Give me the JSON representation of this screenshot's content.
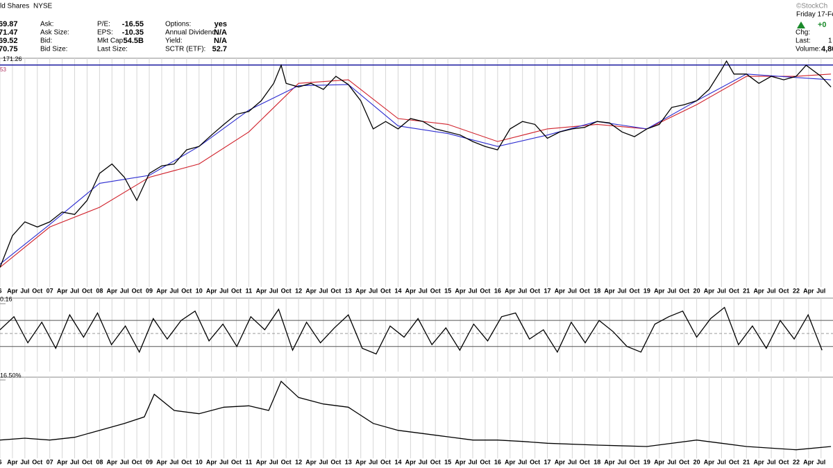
{
  "header": {
    "title": "ld Shares",
    "exchange": "NYSE",
    "brand": "©StockCh",
    "date": "Friday 17-Fe",
    "change": "+0",
    "last": "1",
    "volume": "4,80",
    "prices": [
      "69.87",
      "71.47",
      "69.52",
      "70.75"
    ],
    "labels1": [
      "Ask:",
      "Ask Size:",
      "Bid:",
      "Bid Size:"
    ],
    "labels2": [
      "P/E:",
      "EPS:",
      "Mkt Cap:",
      "Last Size:"
    ],
    "values2": [
      "-16.55",
      "-10.35",
      "54.5B"
    ],
    "labels3": [
      "Options:",
      "Annual Dividend:",
      "Yield:",
      "SCTR (ETF):"
    ],
    "values3": [
      "yes",
      "N/A",
      "N/A",
      "52.7"
    ],
    "side_labels": [
      "Chg:",
      "Last:",
      "Volume:"
    ]
  },
  "chart_data": [
    {
      "type": "line",
      "log": true,
      "grid": true,
      "xlim": [
        2006,
        2022.74
      ],
      "ylim": [
        52,
        175
      ],
      "hline": 171.26,
      "end_label": "53",
      "xticks": [
        {
          "value": 2006,
          "label": "6"
        },
        {
          "value": 2006.25,
          "label": "Apr"
        },
        {
          "value": 2006.5,
          "label": "Jul"
        },
        {
          "value": 2006.75,
          "label": "Oct"
        },
        {
          "value": 2007,
          "label": "07"
        },
        {
          "value": 2007.25,
          "label": "Apr"
        },
        {
          "value": 2007.5,
          "label": "Jul"
        },
        {
          "value": 2007.75,
          "label": "Oct"
        },
        {
          "value": 2008,
          "label": "08"
        },
        {
          "value": 2008.25,
          "label": "Apr"
        },
        {
          "value": 2008.5,
          "label": "Jul"
        },
        {
          "value": 2008.75,
          "label": "Oct"
        },
        {
          "value": 2009,
          "label": "09"
        },
        {
          "value": 2009.25,
          "label": "Apr"
        },
        {
          "value": 2009.5,
          "label": "Jul"
        },
        {
          "value": 2009.75,
          "label": "Oct"
        },
        {
          "value": 2010,
          "label": "10"
        },
        {
          "value": 2010.25,
          "label": "Apr"
        },
        {
          "value": 2010.5,
          "label": "Jul"
        },
        {
          "value": 2010.75,
          "label": "Oct"
        },
        {
          "value": 2011,
          "label": "11"
        },
        {
          "value": 2011.25,
          "label": "Apr"
        },
        {
          "value": 2011.5,
          "label": "Jul"
        },
        {
          "value": 2011.75,
          "label": "Oct"
        },
        {
          "value": 2012,
          "label": "12"
        },
        {
          "value": 2012.25,
          "label": "Apr"
        },
        {
          "value": 2012.5,
          "label": "Jul"
        },
        {
          "value": 2012.75,
          "label": "Oct"
        },
        {
          "value": 2013,
          "label": "13"
        },
        {
          "value": 2013.25,
          "label": "Apr"
        },
        {
          "value": 2013.5,
          "label": "Jul"
        },
        {
          "value": 2013.75,
          "label": "Oct"
        },
        {
          "value": 2014,
          "label": "14"
        },
        {
          "value": 2014.25,
          "label": "Apr"
        },
        {
          "value": 2014.5,
          "label": "Jul"
        },
        {
          "value": 2014.75,
          "label": "Oct"
        },
        {
          "value": 2015,
          "label": "15"
        },
        {
          "value": 2015.25,
          "label": "Apr"
        },
        {
          "value": 2015.5,
          "label": "Jul"
        },
        {
          "value": 2015.75,
          "label": "Oct"
        },
        {
          "value": 2016,
          "label": "16"
        },
        {
          "value": 2016.25,
          "label": "Apr"
        },
        {
          "value": 2016.5,
          "label": "Jul"
        },
        {
          "value": 2016.75,
          "label": "Oct"
        },
        {
          "value": 2017,
          "label": "17"
        },
        {
          "value": 2017.25,
          "label": "Apr"
        },
        {
          "value": 2017.5,
          "label": "Jul"
        },
        {
          "value": 2017.75,
          "label": "Oct"
        },
        {
          "value": 2018,
          "label": "18"
        },
        {
          "value": 2018.25,
          "label": "Apr"
        },
        {
          "value": 2018.5,
          "label": "Jul"
        },
        {
          "value": 2018.75,
          "label": "Oct"
        },
        {
          "value": 2019,
          "label": "19"
        },
        {
          "value": 2019.25,
          "label": "Apr"
        },
        {
          "value": 2019.5,
          "label": "Jul"
        },
        {
          "value": 2019.75,
          "label": "Oct"
        },
        {
          "value": 2020,
          "label": "20"
        },
        {
          "value": 2020.25,
          "label": "Apr"
        },
        {
          "value": 2020.5,
          "label": "Jul"
        },
        {
          "value": 2020.75,
          "label": "Oct"
        },
        {
          "value": 2021,
          "label": "21"
        },
        {
          "value": 2021.25,
          "label": "Apr"
        },
        {
          "value": 2021.5,
          "label": "Jul"
        },
        {
          "value": 2021.75,
          "label": "Oct"
        },
        {
          "value": 2022,
          "label": "22"
        },
        {
          "value": 2022.25,
          "label": "Apr"
        },
        {
          "value": 2022.5,
          "label": "Jul"
        }
      ],
      "series": [
        {
          "color": "#d0202a",
          "x": [
            2006,
            2007,
            2008,
            2009,
            2010,
            2011,
            2012,
            2013,
            2014,
            2015,
            2016,
            2017,
            2018,
            2019,
            2020,
            2021,
            2022,
            2022.7
          ],
          "values": [
            57,
            71,
            79,
            93,
            100,
            119,
            155,
            158,
            128,
            124,
            113,
            121,
            124,
            121,
            138,
            161,
            161,
            163
          ]
        },
        {
          "color": "#2a2ad0",
          "x": [
            2006,
            2007,
            2008,
            2009,
            2010,
            2011,
            2012,
            2013,
            2014,
            2015,
            2016,
            2017,
            2018,
            2019,
            2020,
            2021,
            2022,
            2022.7
          ],
          "values": [
            58,
            72,
            90,
            94,
            110,
            134,
            153,
            154,
            123,
            118,
            110,
            117,
            126,
            121,
            141,
            163,
            160,
            158
          ]
        },
        {
          "color": "#000000",
          "x": [
            2006,
            2006.25,
            2006.5,
            2006.75,
            2007,
            2007.25,
            2007.5,
            2007.75,
            2008,
            2008.25,
            2008.5,
            2008.75,
            2009,
            2009.25,
            2009.5,
            2009.75,
            2010,
            2010.25,
            2010.5,
            2010.75,
            2011,
            2011.25,
            2011.5,
            2011.65,
            2011.75,
            2012,
            2012.25,
            2012.5,
            2012.75,
            2013,
            2013.25,
            2013.5,
            2013.75,
            2014,
            2014.25,
            2014.5,
            2014.75,
            2015,
            2015.25,
            2015.5,
            2015.75,
            2016,
            2016.25,
            2016.5,
            2016.75,
            2017,
            2017.25,
            2017.5,
            2017.75,
            2018,
            2018.25,
            2018.5,
            2018.75,
            2019,
            2019.25,
            2019.5,
            2019.75,
            2020,
            2020.25,
            2020.5,
            2020.6,
            2020.75,
            2021,
            2021.25,
            2021.5,
            2021.75,
            2022,
            2022.2,
            2022.5,
            2022.7
          ],
          "values": [
            57,
            67.7,
            73,
            71,
            73,
            77,
            76,
            82,
            95,
            100,
            93,
            82,
            95,
            99,
            100,
            108,
            110,
            117,
            124,
            131,
            133,
            141,
            155,
            171,
            155,
            152,
            155,
            150,
            161,
            154,
            141,
            121,
            126,
            121,
            128,
            126,
            121,
            119,
            117,
            113,
            110,
            108,
            121,
            126,
            124,
            115,
            119,
            121,
            122,
            126,
            125,
            119,
            116,
            121,
            124,
            136,
            138,
            141,
            150,
            167,
            175,
            163,
            163,
            155,
            161,
            158,
            161,
            171,
            161,
            152
          ]
        }
      ]
    },
    {
      "type": "line",
      "grid": true,
      "xlim": [
        2006,
        2022.74
      ],
      "ylim": [
        -0.22,
        0.16
      ],
      "yticks": [
        0.16
      ],
      "levels": [
        -0.07,
        0,
        0.07
      ],
      "series": [
        {
          "color": "#000000",
          "x": [
            2006,
            2006.28,
            2006.56,
            2006.84,
            2007.12,
            2007.4,
            2007.68,
            2007.96,
            2008.24,
            2008.52,
            2008.8,
            2009.08,
            2009.36,
            2009.64,
            2009.92,
            2010.2,
            2010.48,
            2010.76,
            2011.04,
            2011.32,
            2011.6,
            2011.88,
            2012.16,
            2012.44,
            2012.72,
            2013,
            2013.28,
            2013.56,
            2013.84,
            2014.12,
            2014.4,
            2014.68,
            2014.96,
            2015.24,
            2015.52,
            2015.8,
            2016.08,
            2016.36,
            2016.64,
            2016.92,
            2017.2,
            2017.48,
            2017.76,
            2018.04,
            2018.32,
            2018.6,
            2018.88,
            2019.16,
            2019.44,
            2019.72,
            2020,
            2020.28,
            2020.56,
            2020.84,
            2021.12,
            2021.4,
            2021.68,
            2021.96,
            2022.24,
            2022.52
          ],
          "values": [
            0.02,
            0.09,
            -0.05,
            0.06,
            -0.08,
            0.1,
            -0.02,
            0.11,
            -0.06,
            0.04,
            -0.1,
            0.08,
            -0.03,
            0.07,
            0.12,
            -0.04,
            0.05,
            -0.07,
            0.09,
            0.02,
            0.13,
            -0.09,
            0.06,
            -0.05,
            0.03,
            0.1,
            -0.08,
            -0.11,
            0.04,
            -0.02,
            0.08,
            -0.06,
            0.03,
            -0.09,
            0.05,
            -0.04,
            0.09,
            0.11,
            -0.03,
            0.02,
            -0.1,
            0.06,
            -0.05,
            0.07,
            0.01,
            -0.07,
            -0.1,
            0.05,
            0.09,
            0.12,
            -0.02,
            0.08,
            0.14,
            -0.06,
            0.04,
            -0.08,
            0.07,
            -0.03,
            0.1,
            -0.09
          ]
        }
      ]
    },
    {
      "type": "line",
      "grid": true,
      "xlim": [
        2006,
        2022.74
      ],
      "ylim": [
        0,
        16.5
      ],
      "yticks": [
        {
          "value": 16.5,
          "label": "16.50%"
        }
      ],
      "xticks": [
        {
          "value": 2006,
          "label": "6"
        },
        {
          "value": 2006.25,
          "label": "Apr"
        },
        {
          "value": 2006.5,
          "label": "Jul"
        },
        {
          "value": 2006.75,
          "label": "Oct"
        },
        {
          "value": 2007,
          "label": "07"
        },
        {
          "value": 2007.25,
          "label": "Apr"
        },
        {
          "value": 2007.5,
          "label": "Jul"
        },
        {
          "value": 2007.75,
          "label": "Oct"
        },
        {
          "value": 2008,
          "label": "08"
        },
        {
          "value": 2008.25,
          "label": "Apr"
        },
        {
          "value": 2008.5,
          "label": "Jul"
        },
        {
          "value": 2008.75,
          "label": "Oct"
        },
        {
          "value": 2009,
          "label": "09"
        },
        {
          "value": 2009.25,
          "label": "Apr"
        },
        {
          "value": 2009.5,
          "label": "Jul"
        },
        {
          "value": 2009.75,
          "label": "Oct"
        },
        {
          "value": 2010,
          "label": "10"
        },
        {
          "value": 2010.25,
          "label": "Apr"
        },
        {
          "value": 2010.5,
          "label": "Jul"
        },
        {
          "value": 2010.75,
          "label": "Oct"
        },
        {
          "value": 2011,
          "label": "11"
        },
        {
          "value": 2011.25,
          "label": "Apr"
        },
        {
          "value": 2011.5,
          "label": "Jul"
        },
        {
          "value": 2011.75,
          "label": "Oct"
        },
        {
          "value": 2012,
          "label": "12"
        },
        {
          "value": 2012.25,
          "label": "Apr"
        },
        {
          "value": 2012.5,
          "label": "Jul"
        },
        {
          "value": 2012.75,
          "label": "Oct"
        },
        {
          "value": 2013,
          "label": "13"
        },
        {
          "value": 2013.25,
          "label": "Apr"
        },
        {
          "value": 2013.5,
          "label": "Jul"
        },
        {
          "value": 2013.75,
          "label": "Oct"
        },
        {
          "value": 2014,
          "label": "14"
        },
        {
          "value": 2014.25,
          "label": "Apr"
        },
        {
          "value": 2014.5,
          "label": "Jul"
        },
        {
          "value": 2014.75,
          "label": "Oct"
        },
        {
          "value": 2015,
          "label": "15"
        },
        {
          "value": 2015.25,
          "label": "Apr"
        },
        {
          "value": 2015.5,
          "label": "Jul"
        },
        {
          "value": 2015.75,
          "label": "Oct"
        },
        {
          "value": 2016,
          "label": "16"
        },
        {
          "value": 2016.25,
          "label": "Apr"
        },
        {
          "value": 2016.5,
          "label": "Jul"
        },
        {
          "value": 2016.75,
          "label": "Oct"
        },
        {
          "value": 2017,
          "label": "17"
        },
        {
          "value": 2017.25,
          "label": "Apr"
        },
        {
          "value": 2017.5,
          "label": "Jul"
        },
        {
          "value": 2017.75,
          "label": "Oct"
        },
        {
          "value": 2018,
          "label": "18"
        },
        {
          "value": 2018.25,
          "label": "Apr"
        },
        {
          "value": 2018.5,
          "label": "Jul"
        },
        {
          "value": 2018.75,
          "label": "Oct"
        },
        {
          "value": 2019,
          "label": "19"
        },
        {
          "value": 2019.25,
          "label": "Apr"
        },
        {
          "value": 2019.5,
          "label": "Jul"
        },
        {
          "value": 2019.75,
          "label": "Oct"
        },
        {
          "value": 2020,
          "label": "20"
        },
        {
          "value": 2020.25,
          "label": "Apr"
        },
        {
          "value": 2020.5,
          "label": "Jul"
        },
        {
          "value": 2020.75,
          "label": "Oct"
        },
        {
          "value": 2021,
          "label": "21"
        },
        {
          "value": 2021.25,
          "label": "Apr"
        },
        {
          "value": 2021.5,
          "label": "Jul"
        },
        {
          "value": 2021.75,
          "label": "Oct"
        },
        {
          "value": 2022,
          "label": "22"
        },
        {
          "value": 2022.25,
          "label": "Apr"
        },
        {
          "value": 2022.5,
          "label": "Jul"
        }
      ],
      "series": [
        {
          "color": "#000000",
          "x": [
            2006,
            2006.5,
            2007,
            2007.5,
            2008,
            2008.5,
            2008.9,
            2009.1,
            2009.5,
            2010,
            2010.5,
            2011,
            2011.4,
            2011.65,
            2012,
            2012.5,
            2013,
            2013.5,
            2014,
            2014.5,
            2015,
            2015.5,
            2016,
            2016.5,
            2017,
            2018,
            2019,
            2020,
            2020.5,
            2021,
            2022,
            2022.7
          ],
          "values": [
            3.5,
            3.9,
            3.5,
            4.1,
            5.6,
            7.1,
            8.5,
            13.4,
            9.9,
            9.2,
            10.6,
            10.9,
            9.9,
            16.2,
            12.7,
            11.3,
            10.6,
            7.1,
            5.6,
            4.9,
            4.2,
            3.5,
            3.5,
            3.2,
            2.8,
            2.4,
            2.1,
            3.5,
            2.8,
            2.1,
            1.4,
            2.1
          ]
        }
      ]
    }
  ]
}
